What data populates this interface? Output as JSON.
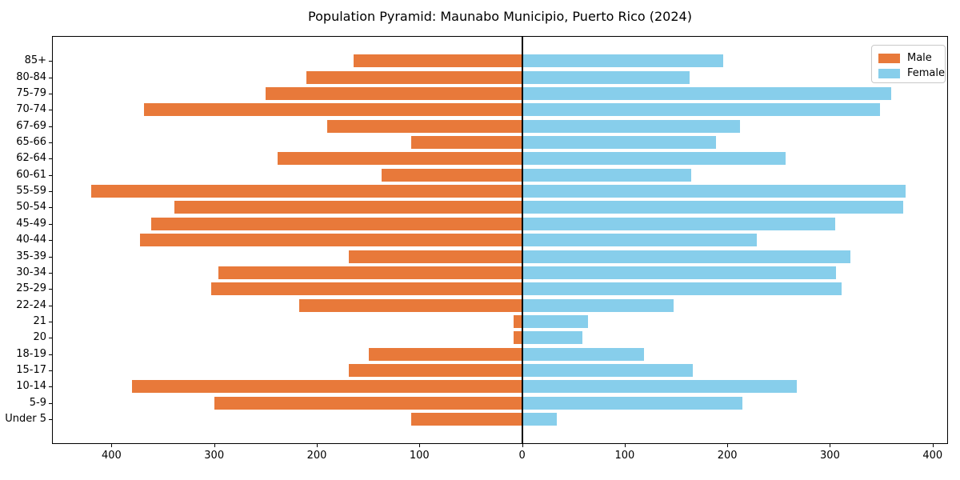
{
  "title": "Population Pyramid: Maunabo Municipio, Puerto Rico (2024)",
  "legend": {
    "male": "Male",
    "female": "Female"
  },
  "colors": {
    "male": "#e8793a",
    "female": "#87ceeb",
    "axis": "#000000"
  },
  "chart_data": {
    "type": "bar",
    "subtype": "population-pyramid",
    "title": "Population Pyramid: Maunabo Municipio, Puerto Rico (2024)",
    "xlabel": "",
    "ylabel": "",
    "grid": false,
    "legend_position": "upper right",
    "center_line": true,
    "xlim": [
      -458,
      415
    ],
    "x_tick_values": [
      -400,
      -300,
      -200,
      -100,
      0,
      100,
      200,
      300,
      400
    ],
    "x_tick_labels": [
      "400",
      "300",
      "200",
      "100",
      "0",
      "100",
      "200",
      "300",
      "400"
    ],
    "categories": [
      "85+",
      "80-84",
      "75-79",
      "70-74",
      "67-69",
      "65-66",
      "62-64",
      "60-61",
      "55-59",
      "50-54",
      "45-49",
      "40-44",
      "35-39",
      "30-34",
      "25-29",
      "22-24",
      "21",
      "20",
      "18-19",
      "15-17",
      "10-14",
      "5-9",
      "Under 5"
    ],
    "series": [
      {
        "name": "Male",
        "side": "left",
        "color": "#e8793a",
        "values": [
          164,
          210,
          250,
          368,
          190,
          108,
          238,
          137,
          420,
          339,
          361,
          372,
          169,
          296,
          303,
          217,
          8,
          8,
          149,
          169,
          380,
          300,
          108
        ]
      },
      {
        "name": "Female",
        "side": "right",
        "color": "#87ceeb",
        "values": [
          196,
          163,
          360,
          349,
          212,
          189,
          257,
          165,
          374,
          371,
          305,
          229,
          320,
          306,
          311,
          148,
          64,
          59,
          119,
          166,
          268,
          215,
          34
        ]
      }
    ]
  }
}
